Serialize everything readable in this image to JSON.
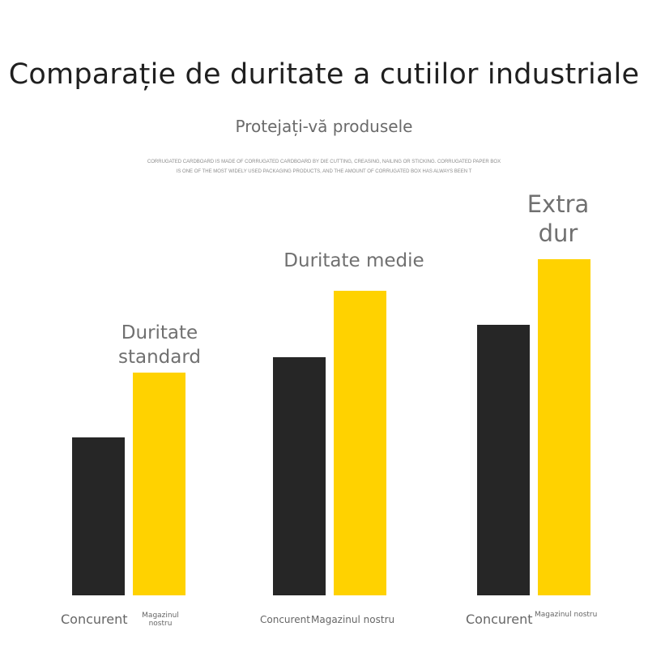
{
  "header": {
    "title": "Comparație de duritate a cutiilor industriale",
    "subtitle": "Protejați-vă produsele",
    "description_line1": "CORRUGATED CARDBOARD IS MADE OF CORRUGATED CARDBOARD BY DIE CUTTING, CREASING, NAILING OR STICKING. CORRUGATED PAPER BOX",
    "description_line2": "IS ONE OF THE MOST WIDELY USED PACKAGING PRODUCTS, AND THE AMOUNT OF CORRUGATED BOX HAS ALWAYS BEEN T"
  },
  "chart_data": {
    "type": "bar",
    "title": "Comparație de duritate a cutiilor industriale",
    "subtitle": "Protejați-vă produsele",
    "groups": [
      {
        "label": "Duritate standard",
        "categories": [
          "Concurent",
          "Magazinul nostru"
        ],
        "values": [
          195,
          275
        ]
      },
      {
        "label": "Duritate medie",
        "categories": [
          "Concurent",
          "Magazinul nostru"
        ],
        "values": [
          294,
          376
        ]
      },
      {
        "label": "Extra dur",
        "categories": [
          "Concurent",
          "Magazinul nostru"
        ],
        "values": [
          334,
          415
        ]
      }
    ],
    "series_colors": [
      "#262626",
      "#ffd200"
    ],
    "ylim": [
      0,
      415
    ],
    "axes_visible": false,
    "grid": false,
    "legend": "none"
  },
  "labels": {
    "group1": {
      "line1": "Duritate",
      "line2": "standard",
      "cat1": "Concurent",
      "cat2a": "Magazinul",
      "cat2b": "nostru"
    },
    "group2": {
      "line1": "Duritate medie",
      "cat1": "Concurent",
      "cat2": "Magazinul nostru"
    },
    "group3": {
      "line1": "Extra",
      "line2": "dur",
      "cat1": "Concurent",
      "cat2": "Magazinul nostru"
    }
  }
}
